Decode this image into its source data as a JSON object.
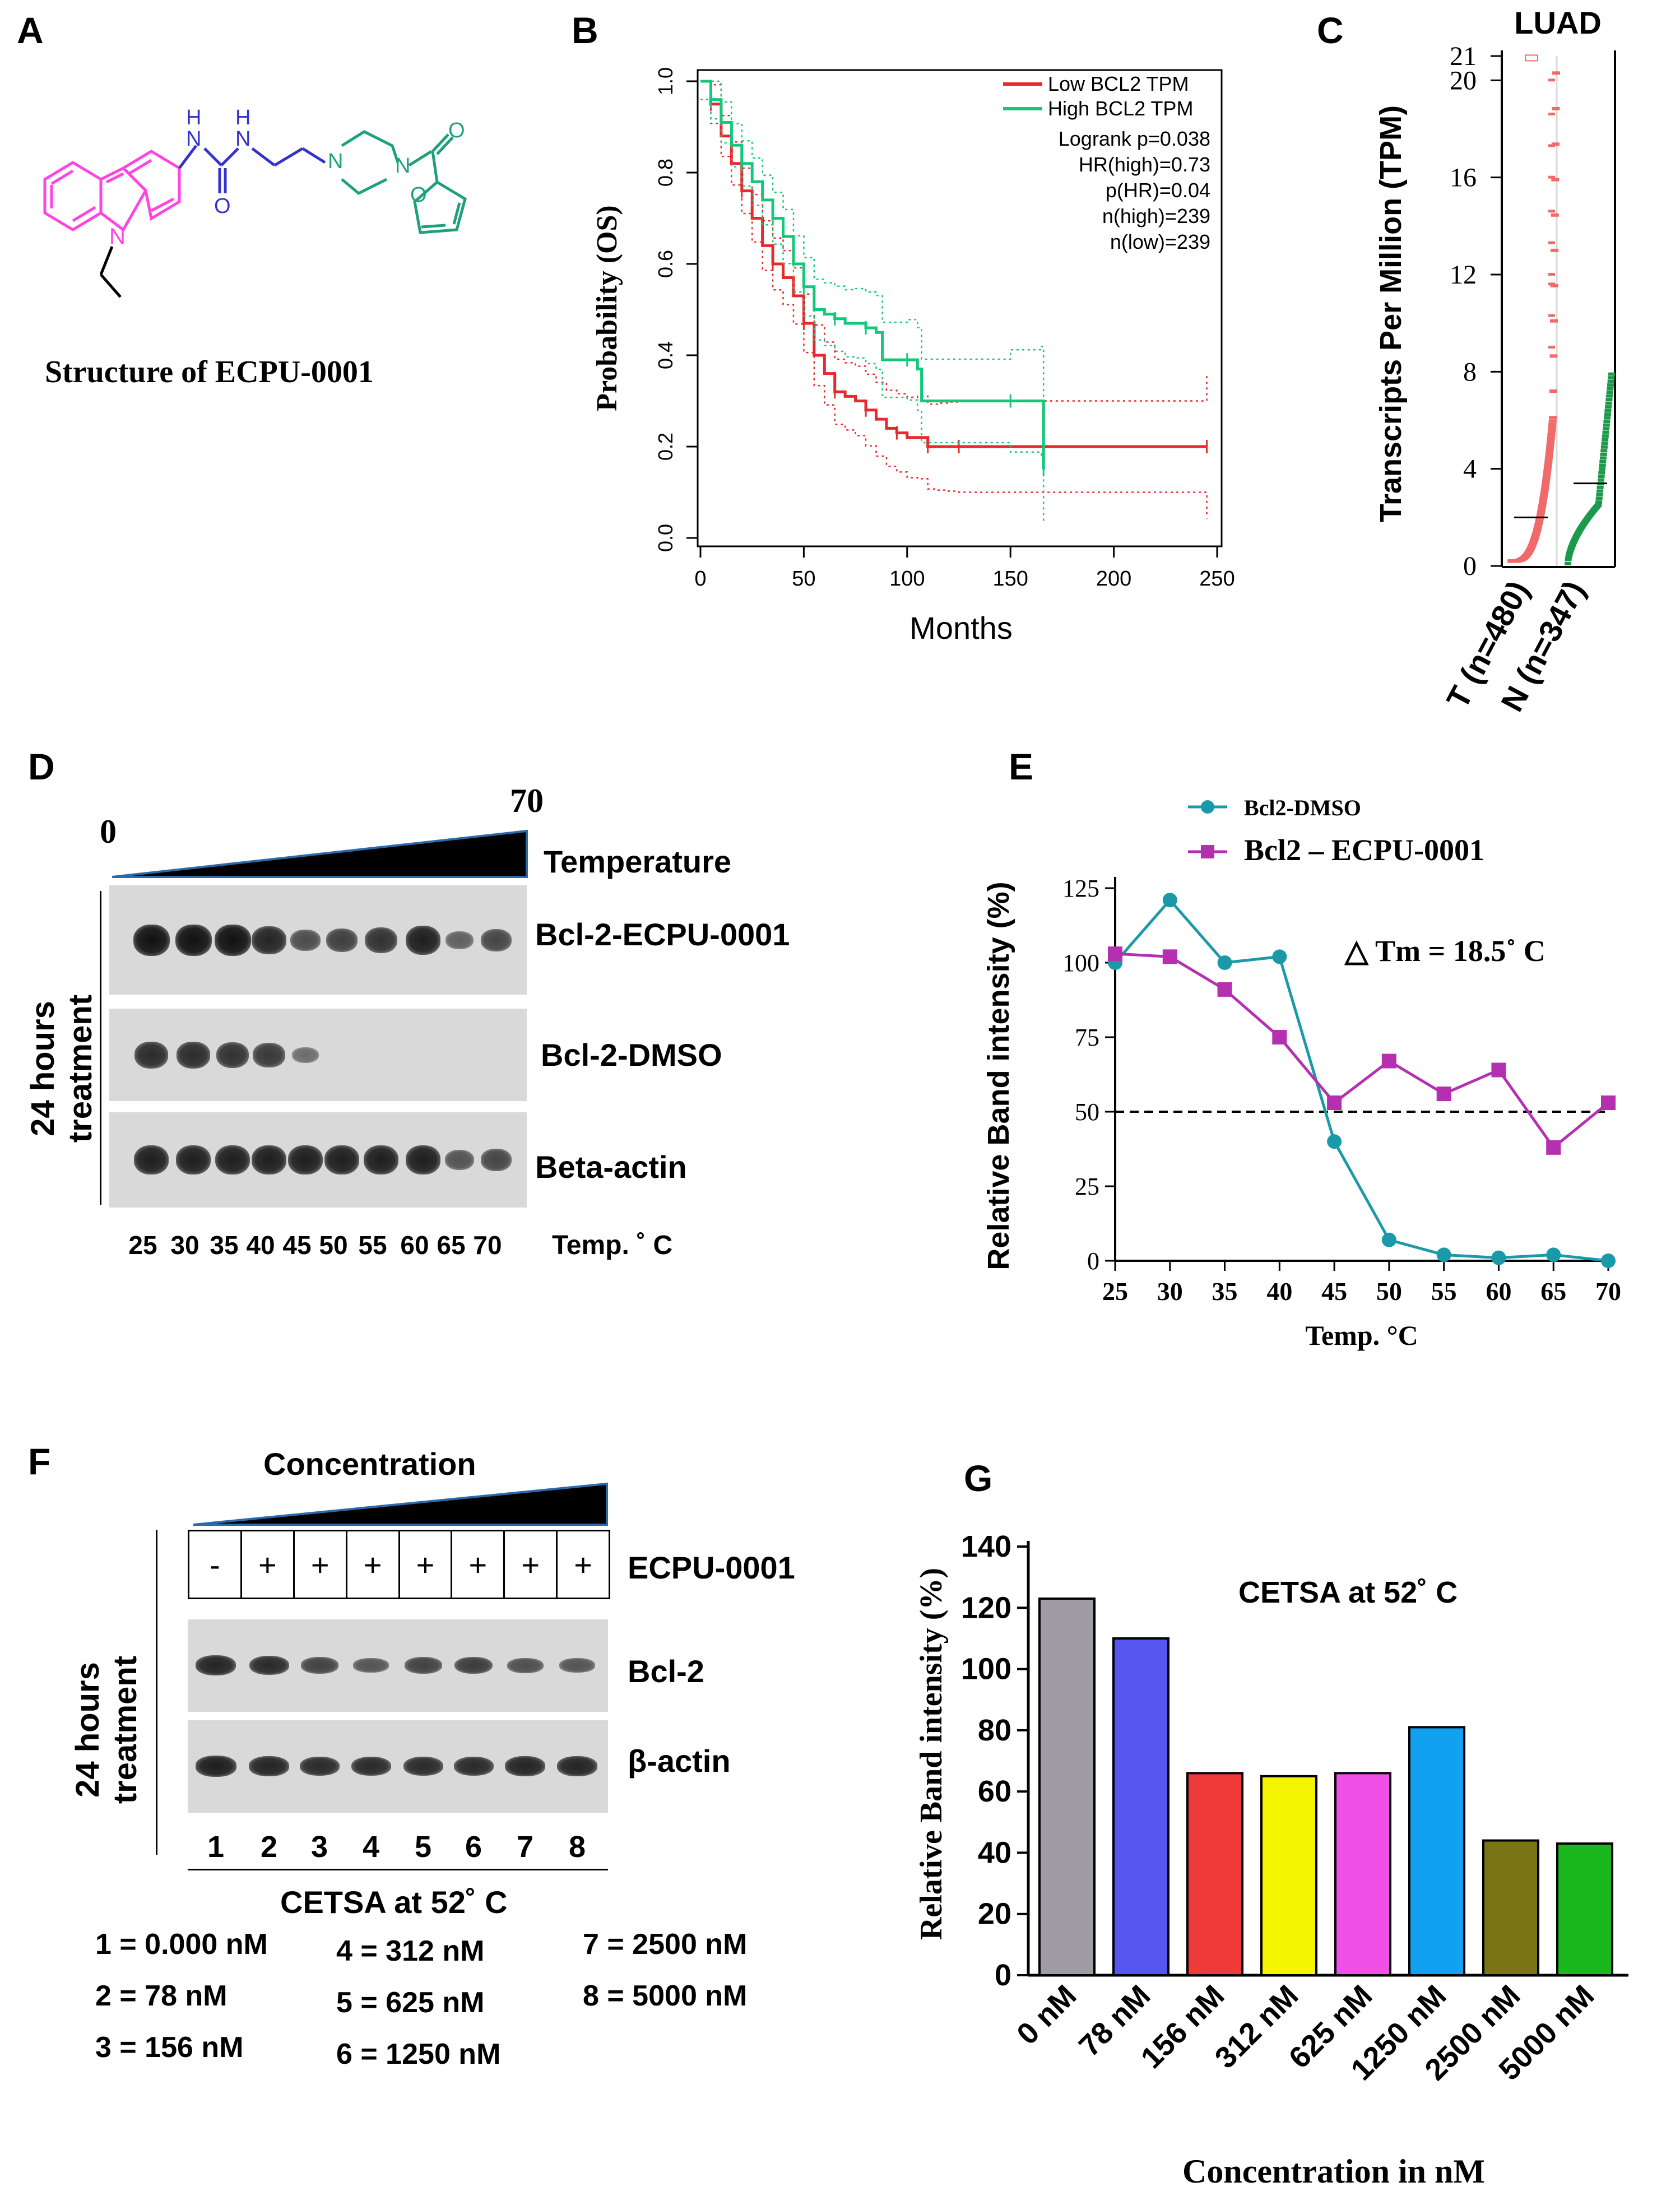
{
  "panels": {
    "A": {
      "label": "A",
      "caption": "Structure of ECPU-0001",
      "atoms": {
        "N_ring": "N",
        "NH1": "N",
        "H1": "H",
        "NH2": "N",
        "H2": "H",
        "O_urea": "O",
        "N_pip1": "N",
        "N_pip2": "N",
        "O_carbonyl": "O",
        "O_furan": "O"
      },
      "colors": {
        "carbazole": "#ff44e0",
        "urea": "#3333cc",
        "piperazine": "#1ea07a",
        "furan": "#1ea07a",
        "bond": "#000000"
      }
    },
    "B": {
      "label": "B",
      "chart_data": {
        "type": "line",
        "title": "",
        "xlabel": "Months",
        "ylabel": "Probability (OS)",
        "xlim": [
          0,
          250
        ],
        "ylim": [
          0,
          1
        ],
        "x_ticks": [
          "0",
          "50",
          "100",
          "150",
          "200",
          "250"
        ],
        "y_ticks": [
          "0.0",
          "0.2",
          "0.4",
          "0.6",
          "0.8",
          "1.0"
        ],
        "legend": [
          "Low BCL2 TPM",
          "High BCL2 TPM"
        ],
        "stats": [
          "Logrank p=0.038",
          "HR(high)=0.73",
          "p(HR)=0.04",
          "n(high)=239",
          "n(low)=239"
        ],
        "series": [
          {
            "name": "Low BCL2 TPM",
            "color": "#e8282c",
            "points": [
              [
                0,
                1
              ],
              [
                5,
                0.95
              ],
              [
                10,
                0.88
              ],
              [
                15,
                0.82
              ],
              [
                20,
                0.76
              ],
              [
                25,
                0.7
              ],
              [
                30,
                0.64
              ],
              [
                35,
                0.6
              ],
              [
                40,
                0.57
              ],
              [
                45,
                0.53
              ],
              [
                50,
                0.47
              ],
              [
                55,
                0.4
              ],
              [
                60,
                0.36
              ],
              [
                65,
                0.32
              ],
              [
                70,
                0.31
              ],
              [
                75,
                0.3
              ],
              [
                80,
                0.28
              ],
              [
                85,
                0.26
              ],
              [
                90,
                0.24
              ],
              [
                95,
                0.23
              ],
              [
                100,
                0.22
              ],
              [
                105,
                0.22
              ],
              [
                110,
                0.2
              ],
              [
                115,
                0.2
              ],
              [
                120,
                0.2
              ],
              [
                125,
                0.2
              ],
              [
                245,
                0.2
              ]
            ]
          },
          {
            "name": "High BCL2 TPM",
            "color": "#12c87a",
            "points": [
              [
                0,
                1
              ],
              [
                5,
                0.96
              ],
              [
                10,
                0.91
              ],
              [
                15,
                0.86
              ],
              [
                20,
                0.82
              ],
              [
                25,
                0.78
              ],
              [
                30,
                0.74
              ],
              [
                35,
                0.7
              ],
              [
                40,
                0.66
              ],
              [
                45,
                0.6
              ],
              [
                50,
                0.55
              ],
              [
                55,
                0.5
              ],
              [
                60,
                0.49
              ],
              [
                65,
                0.48
              ],
              [
                70,
                0.47
              ],
              [
                75,
                0.47
              ],
              [
                80,
                0.46
              ],
              [
                85,
                0.45
              ],
              [
                88,
                0.39
              ],
              [
                100,
                0.39
              ],
              [
                105,
                0.37
              ],
              [
                107,
                0.3
              ],
              [
                150,
                0.3
              ],
              [
                165,
                0.3
              ],
              [
                166,
                0.15
              ]
            ]
          }
        ]
      }
    },
    "C": {
      "label": "C",
      "chart_data": {
        "type": "scatter",
        "title": "LUAD",
        "ylabel": "Transcripts Per Million (TPM)",
        "ylim": [
          0,
          21
        ],
        "y_ticks": [
          "0",
          "4",
          "8",
          "12",
          "16",
          "20",
          "21"
        ],
        "categories": [
          "T (n=480)",
          "N (n=347)"
        ],
        "medians": [
          2.0,
          3.4
        ],
        "series": [
          {
            "name": "T (n=480)",
            "color": "#f06a6a",
            "n": 480,
            "median": 2.0,
            "max": 20.9
          },
          {
            "name": "N (n=347)",
            "color": "#1a9a4a",
            "n": 347,
            "median": 3.4,
            "max": 8.2
          }
        ]
      }
    },
    "D": {
      "label": "D",
      "temp_start": "0",
      "temp_end": "70",
      "temperature_label": "Temperature",
      "side_label": "24 hours treatment",
      "blots": [
        {
          "name": "Bcl-2-ECPU-0001",
          "intensity": [
            1.0,
            1.0,
            1.0,
            0.85,
            0.55,
            0.65,
            0.75,
            0.9,
            0.4,
            0.6
          ]
        },
        {
          "name": "Bcl-2-DMSO",
          "intensity": [
            0.8,
            0.8,
            0.75,
            0.7,
            0.3,
            0,
            0,
            0,
            0,
            0
          ]
        },
        {
          "name": "Beta-actin",
          "intensity": [
            0.9,
            0.9,
            0.9,
            0.9,
            0.9,
            0.9,
            0.9,
            0.9,
            0.5,
            0.6
          ]
        }
      ],
      "lanes": [
        "25",
        "30",
        "35",
        "40",
        "45",
        "50",
        "55",
        "60",
        "65",
        "70"
      ],
      "lanes_label": "Temp. ˚ C"
    },
    "E": {
      "label": "E",
      "chart_data": {
        "type": "line",
        "xlabel": "Temp. °C",
        "ylabel": "Relative Band intensity (%)",
        "categories": [
          "25",
          "30",
          "35",
          "40",
          "45",
          "50",
          "55",
          "60",
          "65",
          "70"
        ],
        "ylim": [
          0,
          125
        ],
        "y_ticks": [
          "0",
          "25",
          "50",
          "75",
          "100",
          "125"
        ],
        "reference_line": 50,
        "annotation": "△ Tm = 18.5˚ C",
        "series": [
          {
            "name": "Bcl2-DMSO",
            "color": "#1a9aa8",
            "marker": "circle",
            "values": [
              100,
              121,
              100,
              102,
              40,
              7,
              2,
              1,
              2,
              0
            ]
          },
          {
            "name": "Bcl2 – ECPU-0001",
            "color": "#b430b0",
            "marker": "square",
            "values": [
              103,
              102,
              91,
              75,
              53,
              67,
              56,
              64,
              38,
              53
            ]
          }
        ]
      }
    },
    "F": {
      "label": "F",
      "concentration_label": "Concentration",
      "side_label": "24 hours treatment",
      "treatment_row": [
        "-",
        "+",
        "+",
        "+",
        "+",
        "+",
        "+",
        "+"
      ],
      "treatment_label": "ECPU-0001",
      "blots": [
        {
          "name": "Bcl-2",
          "intensity": [
            0.85,
            0.8,
            0.6,
            0.45,
            0.6,
            0.65,
            0.5,
            0.45
          ]
        },
        {
          "name": "β-actin",
          "intensity": [
            0.9,
            0.85,
            0.8,
            0.8,
            0.8,
            0.8,
            0.85,
            0.85
          ]
        }
      ],
      "lanes": [
        "1",
        "2",
        "3",
        "4",
        "5",
        "6",
        "7",
        "8"
      ],
      "subtitle": "CETSA at 52˚ C",
      "key": [
        [
          "1 = 0.000 nM",
          "4 = 312 nM",
          "7 = 2500 nM"
        ],
        [
          "2 = 78 nM",
          "5 = 625 nM",
          "8 = 5000 nM"
        ],
        [
          "3 = 156 nM",
          "6 = 1250 nM",
          ""
        ]
      ]
    },
    "G": {
      "label": "G",
      "chart_data": {
        "type": "bar",
        "title": "CETSA at 52˚ C",
        "xlabel": "Concentration in nM",
        "ylabel": "Relative Band intensity (%)",
        "categories": [
          "0 nM",
          "78 nM",
          "156 nM",
          "312 nM",
          "625 nM",
          "1250 nM",
          "2500 nM",
          "5000 nM"
        ],
        "values": [
          123,
          110,
          66,
          65,
          66,
          81,
          44,
          43
        ],
        "colors": [
          "#a09ca6",
          "#5555f0",
          "#f03a3a",
          "#f5f500",
          "#f050e8",
          "#12a0f0",
          "#7a7414",
          "#1ab81e"
        ],
        "ylim": [
          0,
          140
        ],
        "y_ticks": [
          "0",
          "20",
          "40",
          "60",
          "80",
          "100",
          "120",
          "140"
        ]
      }
    }
  }
}
